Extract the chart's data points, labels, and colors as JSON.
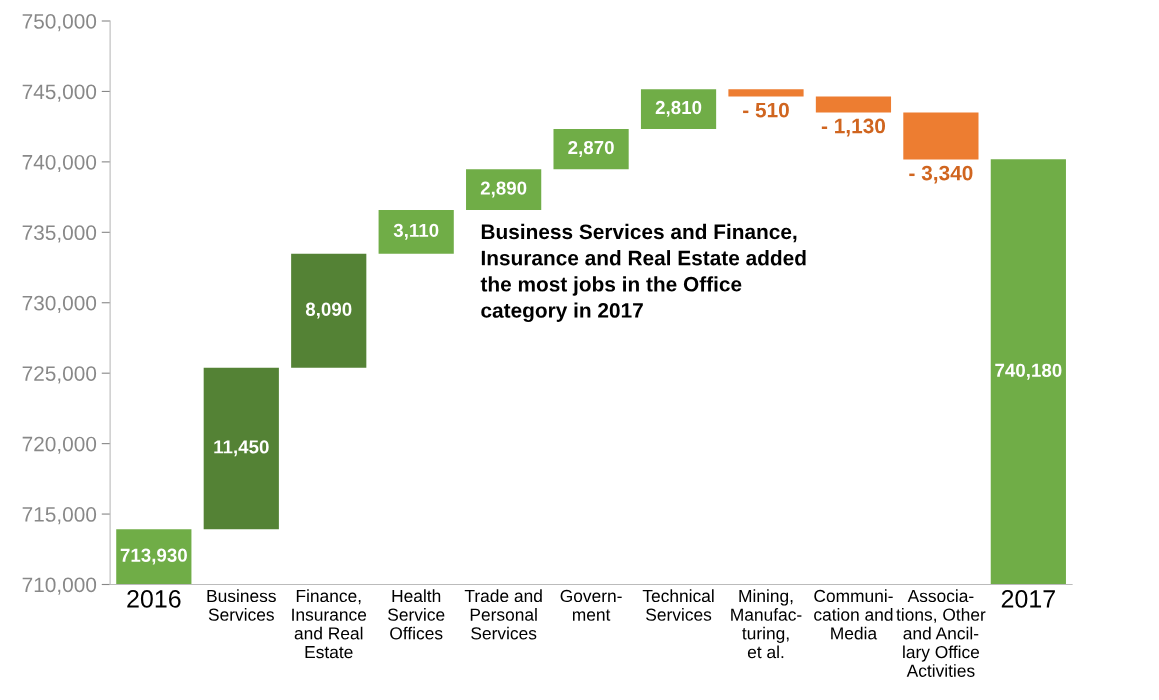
{
  "chart_data": {
    "type": "bar",
    "categories": [
      "2016",
      "Business\nServices",
      "Finance,\nInsurance\nand Real\nEstate",
      "Health\nService\nOffices",
      "Trade and\nPersonal\nServices",
      "Govern-\nment",
      "Technical\nServices",
      "Mining,\nManufac-\nturing,\net al.",
      "Communi-\ncation and\nMedia",
      "Associa-\ntions, Other\nand Ancil-\nlary Office\nActivities",
      "2017"
    ],
    "values": [
      713930,
      11450,
      8090,
      3110,
      2890,
      2870,
      2810,
      -510,
      -1130,
      -3340,
      740180
    ],
    "base": [
      0,
      713930,
      725380,
      733470,
      736580,
      739470,
      742340,
      745150,
      744640,
      743510,
      0
    ],
    "colors": [
      "#70ad47",
      "#548235",
      "#548235",
      "#70ad47",
      "#70ad47",
      "#70ad47",
      "#70ad47",
      "#ed7d31",
      "#ed7d31",
      "#ed7d31",
      "#70ad47"
    ],
    "value_labels": [
      "713,930",
      "11,450",
      "8,090",
      "3,110",
      "2,890",
      "2,870",
      "2,810",
      "- 510",
      "- 1,130",
      "- 3,340",
      "740,180"
    ],
    "ylim": [
      710000,
      750000
    ],
    "yticks": [
      {
        "value": 710000,
        "label": "710,000"
      },
      {
        "value": 715000,
        "label": "715,000"
      },
      {
        "value": 720000,
        "label": "720,000"
      },
      {
        "value": 725000,
        "label": "725,000"
      },
      {
        "value": 730000,
        "label": "730,000"
      },
      {
        "value": 735000,
        "label": "735,000"
      },
      {
        "value": 740000,
        "label": "740,000"
      },
      {
        "value": 745000,
        "label": "745,000"
      },
      {
        "value": 750000,
        "label": "750,000"
      }
    ],
    "grid": false,
    "annotations": [
      "Business Services and Finance, Insurance and Real Estate added the most jobs in the Office category in 2017"
    ]
  }
}
